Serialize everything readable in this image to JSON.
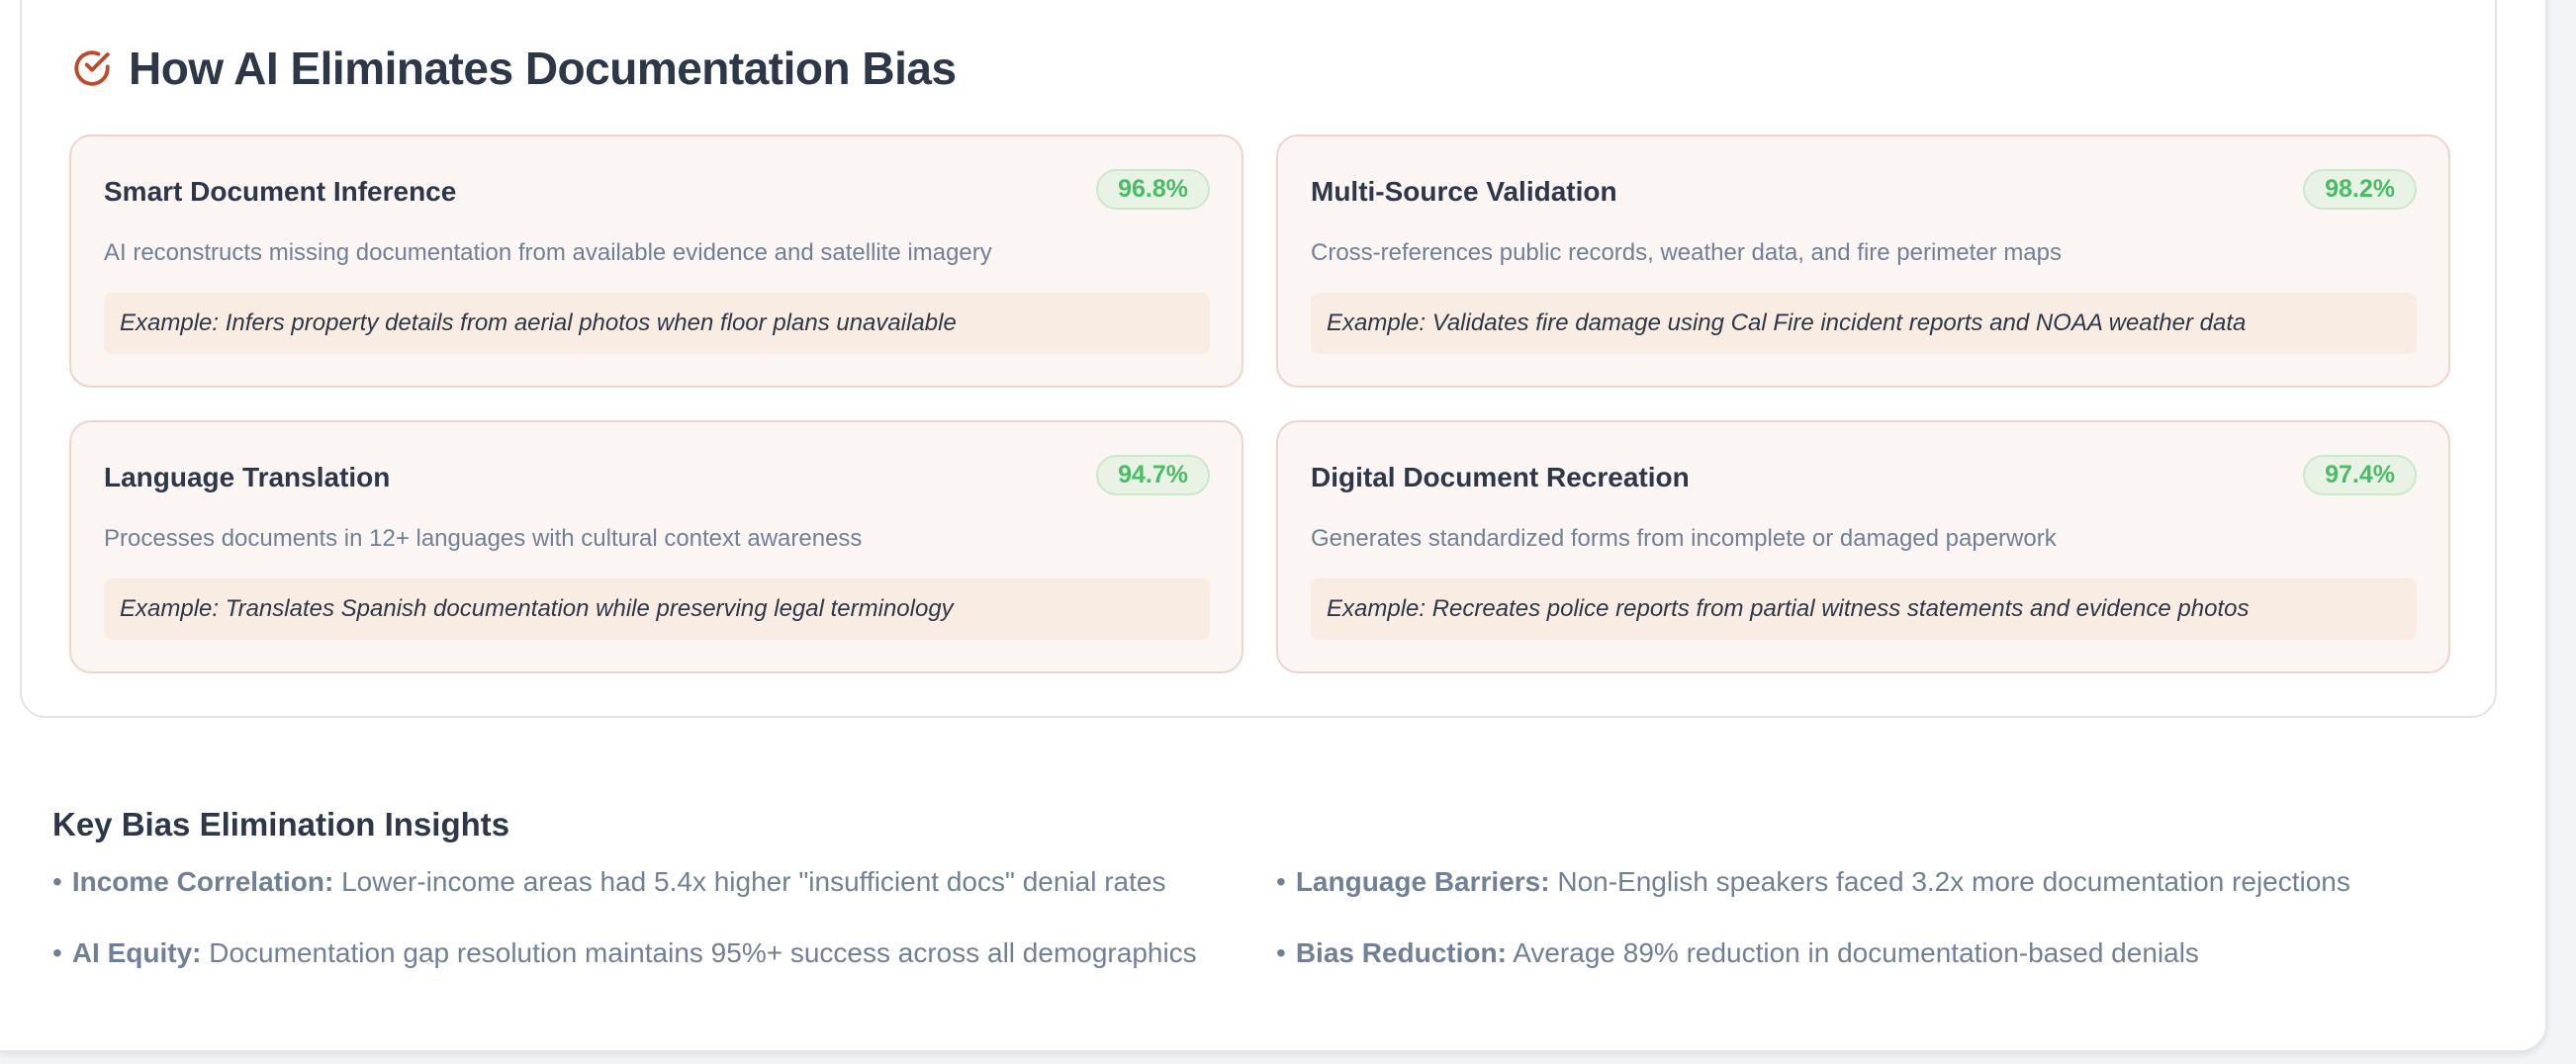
{
  "section": {
    "title": "How AI Eliminates Documentation Bias",
    "icon": "check-circle-icon",
    "accent_color": "#c0492a",
    "cards": [
      {
        "title": "Smart Document Inference",
        "badge": "96.8%",
        "description": "AI reconstructs missing documentation from available evidence and satellite imagery",
        "example": "Example: Infers property details from aerial photos when floor plans unavailable"
      },
      {
        "title": "Multi-Source Validation",
        "badge": "98.2%",
        "description": "Cross-references public records, weather data, and fire perimeter maps",
        "example": "Example: Validates fire damage using Cal Fire incident reports and NOAA weather data"
      },
      {
        "title": "Language Translation",
        "badge": "94.7%",
        "description": "Processes documents in 12+ languages with cultural context awareness",
        "example": "Example: Translates Spanish documentation while preserving legal terminology"
      },
      {
        "title": "Digital Document Recreation",
        "badge": "97.4%",
        "description": "Generates standardized forms from incomplete or damaged paperwork",
        "example": "Example: Recreates police reports from partial witness statements and evidence photos"
      }
    ]
  },
  "insights": {
    "title": "Key Bias Elimination Insights",
    "bullet": "•",
    "items": [
      {
        "label": "Income Correlation:",
        "text": " Lower-income areas had 5.4x higher \"insufficient docs\" denial rates"
      },
      {
        "label": "Language Barriers:",
        "text": " Non-English speakers faced 3.2x more documentation rejections"
      },
      {
        "label": "AI Equity:",
        "text": " Documentation gap resolution maintains 95%+ success across all demographics"
      },
      {
        "label": "Bias Reduction:",
        "text": " Average 89% reduction in documentation-based denials"
      }
    ]
  }
}
